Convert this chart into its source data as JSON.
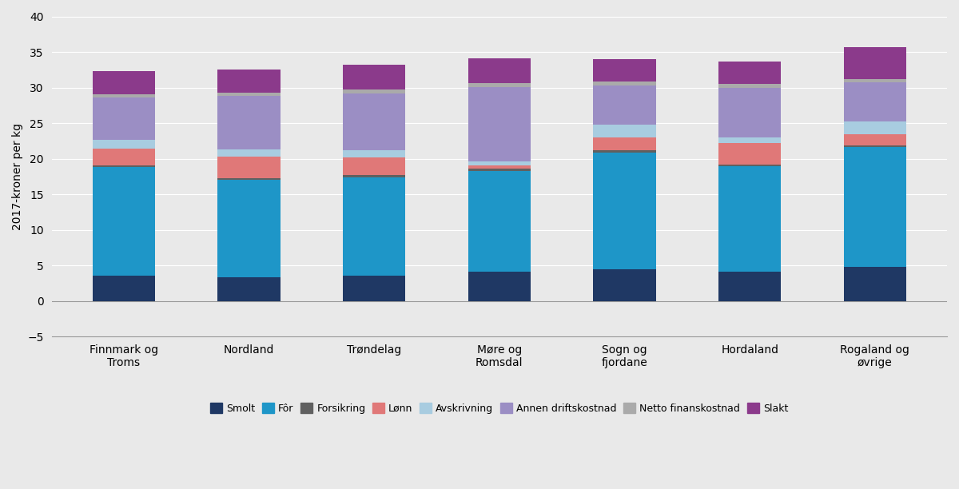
{
  "categories": [
    "Finnmark og\nTroms",
    "Nordland",
    "Trøndelag",
    "Møre og\nRomsdal",
    "Sogn og\nfjordane",
    "Hordaland",
    "Rogaland og\nøvrige"
  ],
  "series_order": [
    "Smolt",
    "Fôr",
    "Forsikring",
    "Lønn",
    "Avskrivning",
    "Annen driftskostnad",
    "Netto finanskostnad",
    "Slakt"
  ],
  "series": {
    "Smolt": [
      3.5,
      3.3,
      3.6,
      4.1,
      4.4,
      4.1,
      4.8
    ],
    "Fôr": [
      15.3,
      13.7,
      13.8,
      14.2,
      16.5,
      14.8,
      16.8
    ],
    "Forsikring": [
      0.3,
      0.3,
      0.3,
      0.3,
      0.3,
      0.3,
      0.3
    ],
    "Lønn": [
      2.3,
      3.0,
      2.5,
      0.5,
      1.8,
      3.0,
      1.5
    ],
    "Avskrivning": [
      1.2,
      1.0,
      1.0,
      0.5,
      1.8,
      0.8,
      1.8
    ],
    "Annen driftskostnad": [
      6.0,
      7.5,
      8.0,
      10.5,
      5.5,
      7.0,
      5.5
    ],
    "Netto finanskostnad": [
      0.5,
      0.5,
      0.5,
      0.5,
      0.5,
      0.5,
      0.5
    ],
    "Slakt": [
      3.2,
      3.2,
      3.5,
      3.5,
      3.2,
      3.2,
      4.5
    ]
  },
  "colors": {
    "Smolt": "#1f3864",
    "Fôr": "#1e96c8",
    "Forsikring": "#606060",
    "Lønn": "#e07878",
    "Avskrivning": "#a8cce0",
    "Annen driftskostnad": "#9b8ec4",
    "Netto finanskostnad": "#aaaaaa",
    "Slakt": "#8b3a8b"
  },
  "ylabel": "2017-kroner per kg",
  "ylim": [
    -5,
    40
  ],
  "yticks": [
    -5,
    0,
    5,
    10,
    15,
    20,
    25,
    30,
    35,
    40
  ],
  "background_color": "#e9e9e9",
  "bar_width": 0.5
}
